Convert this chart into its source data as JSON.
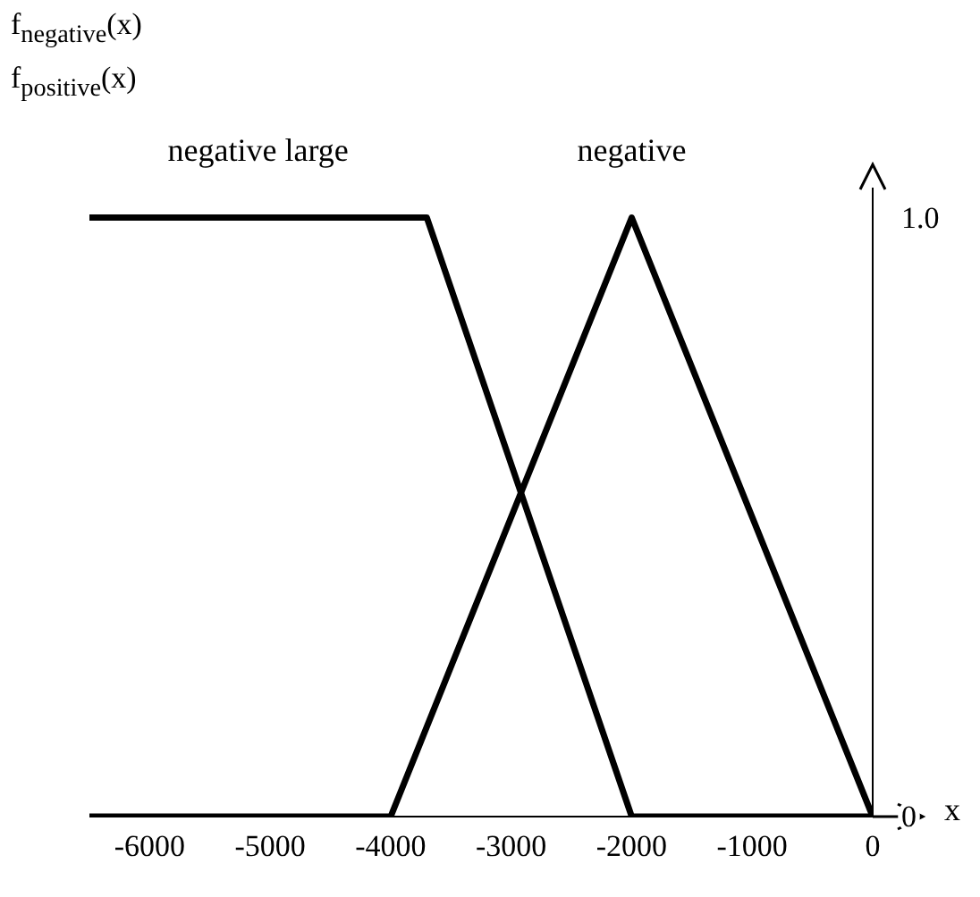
{
  "chart_data": {
    "type": "line",
    "ylabel": "f$_{negative}$(x)",
    "annotations": [
      "f$_{positive}$(x)"
    ],
    "xlabel": "x",
    "series": [
      {
        "name": "negative large",
        "color": "#000000",
        "x": [
          -6500,
          -3700,
          -2000,
          0
        ],
        "values": [
          1,
          1,
          0,
          0
        ]
      },
      {
        "name": "negative",
        "color": "#000000",
        "x": [
          -6500,
          -4000,
          -2000,
          0
        ],
        "values": [
          0,
          0,
          1,
          0
        ]
      }
    ],
    "xlim": [
      -6500,
      0
    ],
    "xticks": [
      -6000,
      -5000,
      -4000,
      -3000,
      -2000,
      -1000,
      0
    ],
    "ylim": [
      0,
      1.05
    ],
    "yticks": [
      0,
      {
        "value": 1,
        "label": "1.0"
      }
    ],
    "grid": false,
    "legend": false,
    "marker": "none",
    "line_style": "solid"
  }
}
